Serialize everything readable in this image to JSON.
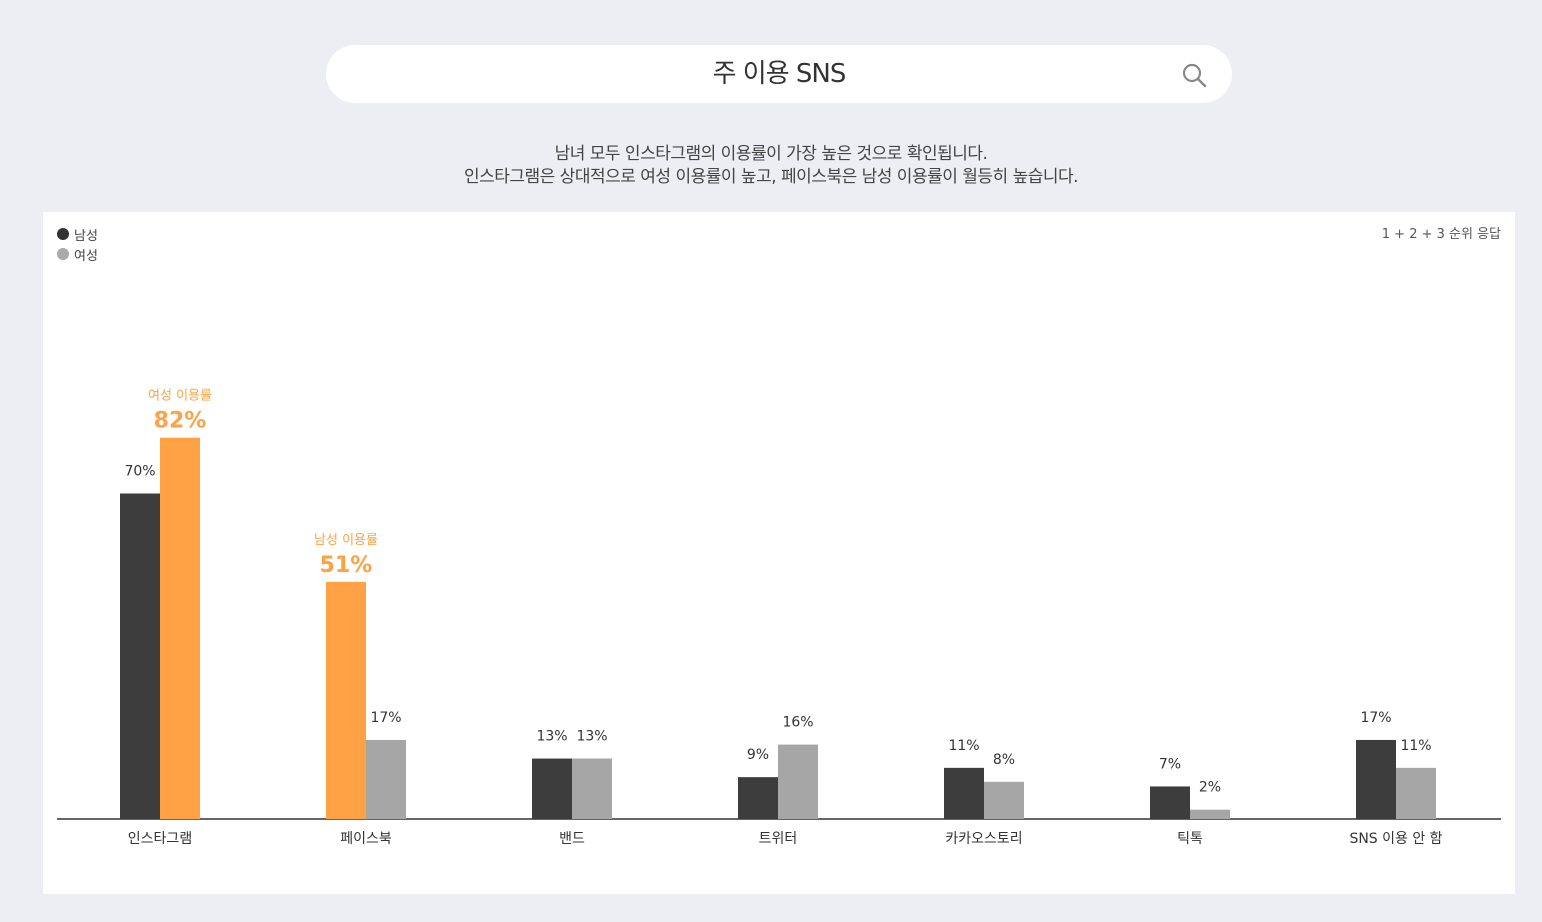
{
  "header": {
    "title": "주 이용 SNS",
    "icon": "search-icon"
  },
  "subtitle": {
    "line1": "남녀 모두 인스타그램의 이용률이 가장 높은 것으로 확인됩니다.",
    "line2": "인스타그램은 상대적으로 여성 이용률이 높고, 페이스북은 남성 이용률이 월등히 높습니다."
  },
  "legend": {
    "male": "남성",
    "female": "여성"
  },
  "note": "1 + 2 + 3 순위 응답",
  "colors": {
    "male": "#3d3d3d",
    "female": "#a6a6a6",
    "highlight": "#ffa245",
    "axis": "#333333"
  },
  "chart_data": {
    "type": "bar",
    "categories": [
      "인스타그램",
      "페이스북",
      "밴드",
      "트위터",
      "카카오스토리",
      "틱톡",
      "SNS 이용 안 함"
    ],
    "series": [
      {
        "name": "남성",
        "values": [
          70,
          51,
          13,
          9,
          11,
          7,
          17
        ]
      },
      {
        "name": "여성",
        "values": [
          82,
          17,
          13,
          16,
          8,
          2,
          11
        ]
      }
    ],
    "value_suffix": "%",
    "ylim": [
      0,
      100
    ],
    "grid": false,
    "legend_position": "top-left",
    "highlights": [
      {
        "category_index": 0,
        "series_index": 1,
        "label": "여성 이용률",
        "value_text": "82%"
      },
      {
        "category_index": 1,
        "series_index": 0,
        "label": "남성 이용률",
        "value_text": "51%"
      }
    ]
  }
}
